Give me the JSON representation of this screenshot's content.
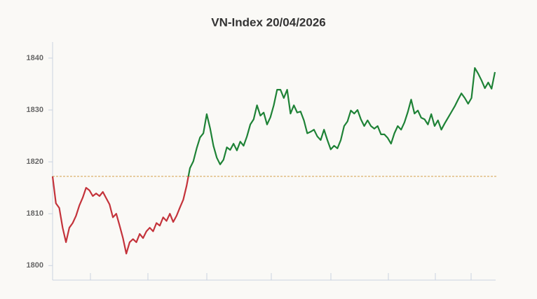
{
  "chart_data": {
    "type": "line",
    "title": "VN-Index 20/04/2026",
    "values": [
      1817.2,
      1812.0,
      1811.1,
      1807.3,
      1804.5,
      1807.3,
      1808.2,
      1809.6,
      1811.6,
      1813.1,
      1815.0,
      1814.5,
      1813.4,
      1813.9,
      1813.4,
      1814.2,
      1813.0,
      1811.8,
      1809.3,
      1810.0,
      1807.7,
      1805.3,
      1802.3,
      1804.5,
      1805.1,
      1804.5,
      1806.1,
      1805.3,
      1806.6,
      1807.3,
      1806.6,
      1808.2,
      1807.7,
      1809.3,
      1808.6,
      1810.0,
      1808.4,
      1809.6,
      1811.2,
      1812.7,
      1815.4,
      1818.8,
      1820.1,
      1822.6,
      1824.7,
      1825.5,
      1829.2,
      1826.5,
      1823.1,
      1820.8,
      1819.5,
      1820.4,
      1822.8,
      1822.3,
      1823.5,
      1822.2,
      1823.9,
      1823.1,
      1824.9,
      1827.2,
      1828.2,
      1830.9,
      1828.9,
      1829.5,
      1827.2,
      1828.6,
      1830.9,
      1833.9,
      1833.9,
      1832.3,
      1833.9,
      1829.3,
      1830.9,
      1829.5,
      1829.7,
      1828.0,
      1825.5,
      1825.8,
      1826.2,
      1824.9,
      1824.2,
      1826.2,
      1824.2,
      1822.4,
      1823.1,
      1822.6,
      1824.2,
      1826.9,
      1827.8,
      1829.9,
      1829.3,
      1830.0,
      1828.2,
      1826.9,
      1828.0,
      1826.9,
      1826.4,
      1826.9,
      1825.3,
      1825.3,
      1824.6,
      1823.5,
      1825.5,
      1826.9,
      1826.2,
      1827.6,
      1829.6,
      1832.0,
      1829.3,
      1829.9,
      1828.5,
      1828.2,
      1827.2,
      1829.2,
      1826.9,
      1828.0,
      1826.2,
      1827.4,
      1828.5,
      1829.6,
      1830.7,
      1832.0,
      1833.2,
      1832.3,
      1831.2,
      1832.3,
      1838.1,
      1837.0,
      1835.7,
      1834.2,
      1835.3,
      1834.1,
      1837.3
    ],
    "reference": 1817.2,
    "up_color": "#1e8236",
    "down_color": "#c4333b",
    "reference_color": "#d4a04a",
    "ylim": [
      1797.2,
      1843.1
    ],
    "yticks": [
      1800,
      1810,
      1820,
      1830,
      1840
    ]
  }
}
